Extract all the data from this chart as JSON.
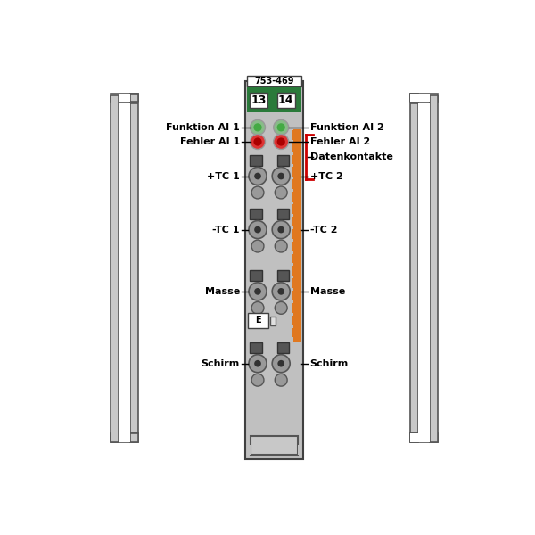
{
  "bg_color": "#ffffff",
  "white": "#ffffff",
  "light_gray": "#c8c8c8",
  "very_light_gray": "#e0e0e0",
  "mid_gray": "#999999",
  "dark_gray": "#555555",
  "darker_gray": "#333333",
  "module_bg": "#c0c0c0",
  "module_border": "#404040",
  "green_led_outer": "#88bb88",
  "green_led_inner": "#44aa44",
  "red_led_outer": "#dd3333",
  "red_led_inner": "#aa0000",
  "orange_strip": "#e07820",
  "green_header": "#2a7a3a",
  "red_line": "#cc0000",
  "title": "753-469",
  "label_13": "13",
  "label_14": "14",
  "label_e": "E",
  "font_size_title": 7,
  "font_size_label": 8,
  "font_size_num": 9,
  "font_size_e": 7
}
